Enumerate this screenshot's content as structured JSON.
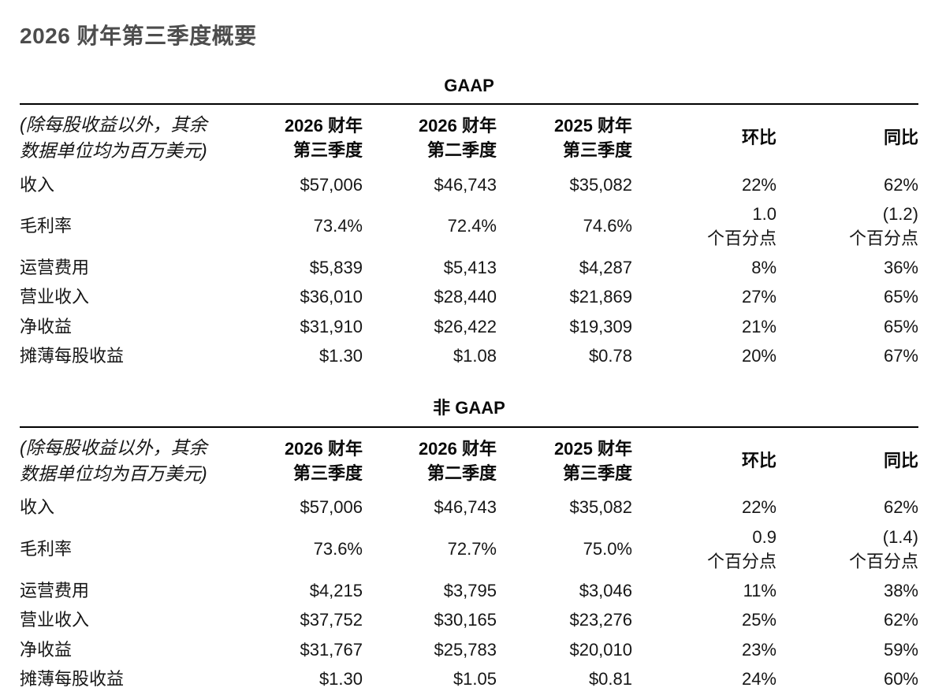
{
  "page_title": "2026 财年第三季度概要",
  "colors": {
    "title_text": "#4d4d4d",
    "body_text": "#161616",
    "rule": "#000000",
    "background": "#ffffff"
  },
  "tables": [
    {
      "caption": "GAAP",
      "unit_note": "(除每股收益以外，其余\n数据单位均为百万美元)",
      "columns": [
        "2026 财年\n第三季度",
        "2026 财年\n第二季度",
        "2025 财年\n第三季度",
        "环比",
        "同比"
      ],
      "rows": [
        {
          "label": "收入",
          "cells": [
            "$57,006",
            "$46,743",
            "$35,082",
            "22%",
            "62%"
          ]
        },
        {
          "label": "毛利率",
          "cells": [
            "73.4%",
            "72.4%",
            "74.6%",
            "1.0\n个百分点",
            "(1.2)\n个百分点"
          ]
        },
        {
          "label": "运营费用",
          "cells": [
            "$5,839",
            "$5,413",
            "$4,287",
            "8%",
            "36%"
          ]
        },
        {
          "label": "营业收入",
          "cells": [
            "$36,010",
            "$28,440",
            "$21,869",
            "27%",
            "65%"
          ]
        },
        {
          "label": "净收益",
          "cells": [
            "$31,910",
            "$26,422",
            "$19,309",
            "21%",
            "65%"
          ]
        },
        {
          "label": "摊薄每股收益",
          "cells": [
            "$1.30",
            "$1.08",
            "$0.78",
            "20%",
            "67%"
          ]
        }
      ]
    },
    {
      "caption": "非 GAAP",
      "unit_note": "(除每股收益以外，其余\n数据单位均为百万美元)",
      "columns": [
        "2026 财年\n第三季度",
        "2026 财年\n第二季度",
        "2025 财年\n第三季度",
        "环比",
        "同比"
      ],
      "rows": [
        {
          "label": "收入",
          "cells": [
            "$57,006",
            "$46,743",
            "$35,082",
            "22%",
            "62%"
          ]
        },
        {
          "label": "毛利率",
          "cells": [
            "73.6%",
            "72.7%",
            "75.0%",
            "0.9\n个百分点",
            "(1.4)\n个百分点"
          ]
        },
        {
          "label": "运营费用",
          "cells": [
            "$4,215",
            "$3,795",
            "$3,046",
            "11%",
            "38%"
          ]
        },
        {
          "label": "营业收入",
          "cells": [
            "$37,752",
            "$30,165",
            "$23,276",
            "25%",
            "62%"
          ]
        },
        {
          "label": "净收益",
          "cells": [
            "$31,767",
            "$25,783",
            "$20,010",
            "23%",
            "59%"
          ]
        },
        {
          "label": "摊薄每股收益",
          "cells": [
            "$1.30",
            "$1.05",
            "$0.81",
            "24%",
            "60%"
          ]
        }
      ]
    }
  ]
}
